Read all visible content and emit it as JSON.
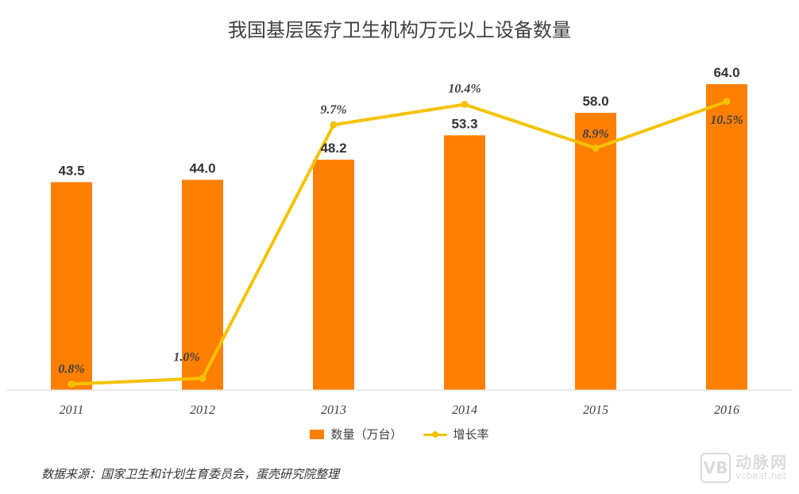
{
  "chart_data": {
    "type": "bar",
    "title": "我国基层医疗卫生机构万元以上设备数量",
    "categories": [
      "2011",
      "2012",
      "2013",
      "2014",
      "2015",
      "2016"
    ],
    "series": [
      {
        "name": "数量（万台）",
        "type": "bar",
        "values": [
          43.5,
          44.0,
          48.2,
          53.3,
          58.0,
          64.0
        ],
        "labels": [
          "43.5",
          "44.0",
          "48.2",
          "53.3",
          "58.0",
          "64.0"
        ],
        "color": "#FF7F00"
      },
      {
        "name": "增长率",
        "type": "line",
        "values": [
          0.8,
          1.0,
          9.7,
          10.4,
          8.9,
          10.5
        ],
        "labels": [
          "0.8%",
          "1.0%",
          "9.7%",
          "10.4%",
          "8.9%",
          "10.5%"
        ],
        "color": "#F5C200"
      }
    ],
    "legend_position": "bottom",
    "grid": false
  },
  "source": "数据来源：国家卫生和计划生育委员会，蛋壳研究院整理",
  "watermark": {
    "logo": "VB",
    "name": "动脉网",
    "url": "vcbeat.net"
  }
}
